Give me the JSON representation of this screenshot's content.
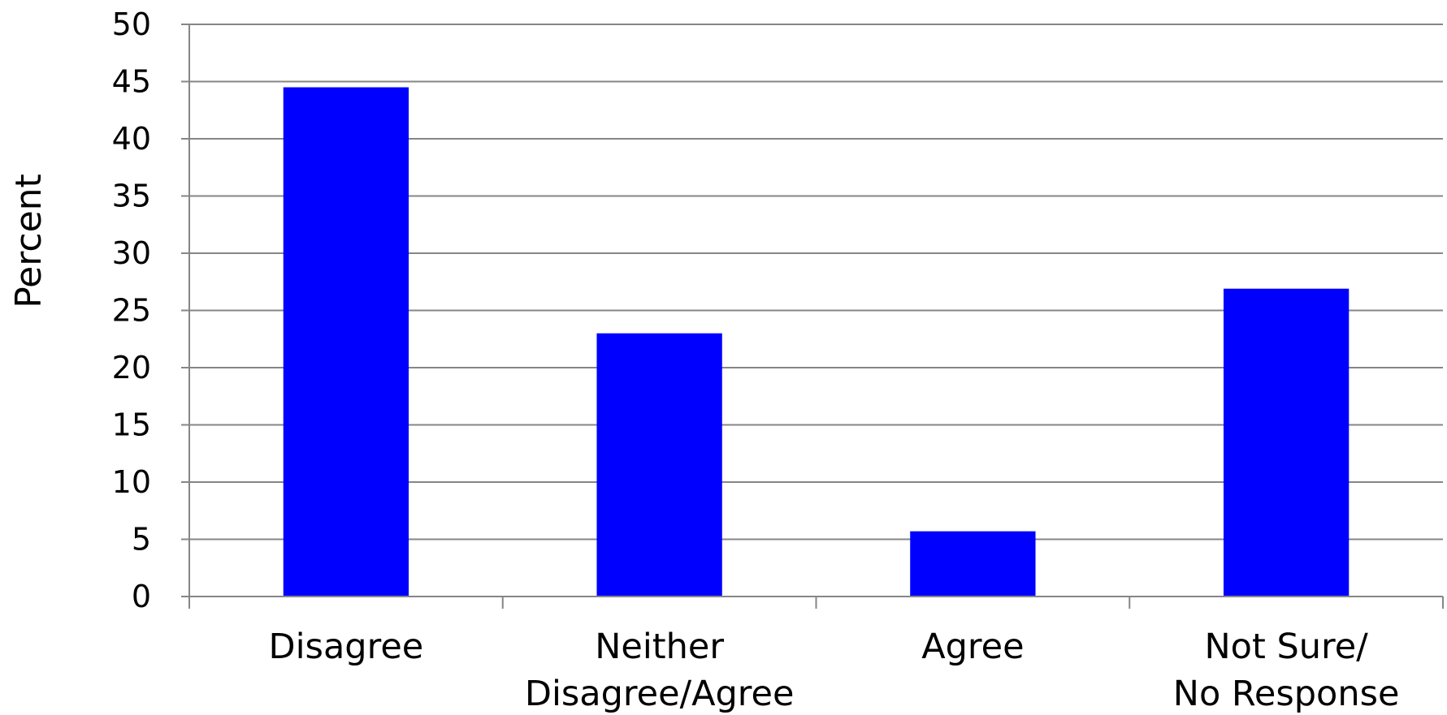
{
  "chart_data": {
    "type": "bar",
    "title": "",
    "xlabel": "",
    "ylabel": "Percent",
    "ylim": [
      0,
      50
    ],
    "y_ticks": [
      "0",
      "5",
      "10",
      "15",
      "20",
      "25",
      "30",
      "35",
      "40",
      "45",
      "50"
    ],
    "grid": true,
    "legend": "none",
    "categories": [
      [
        "Disagree"
      ],
      [
        "Neither",
        "Disagree/Agree"
      ],
      [
        "Agree"
      ],
      [
        "Not Sure/",
        "No Response"
      ]
    ],
    "values": [
      44.5,
      23.0,
      5.7,
      26.9
    ],
    "bar_color": "#0000ff",
    "grid_color": "#868686",
    "axis_color": "#868686"
  }
}
